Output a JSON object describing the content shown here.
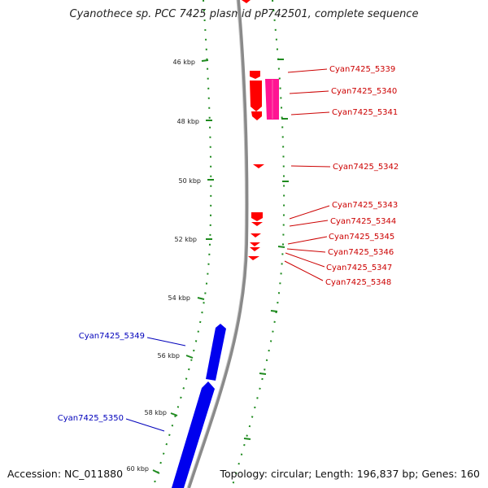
{
  "title": "Cyanothece sp. PCC 7425 plasmid pP742501, complete sequence",
  "footer": {
    "accession": "Accession: NC_011880",
    "stats": "Topology: circular; Length: 196,837 bp; Genes: 160"
  },
  "colors": {
    "background": "#ffffff",
    "backbone": "#8a8a8a",
    "tick_dash": "#1e8a1e",
    "forward_gene": "#0000ee",
    "reverse_gene": "#ff0000",
    "reverse_gene_pink": "#ff1493",
    "label_red": "#cc0000",
    "label_blue": "#0000bb"
  },
  "ticks": [
    "46 kbp",
    "48 kbp",
    "50 kbp",
    "52 kbp",
    "54 kbp",
    "56 kbp",
    "58 kbp",
    "60 kbp"
  ],
  "genes_reverse": [
    "Cyan7425_5339",
    "Cyan7425_5340",
    "Cyan7425_5341",
    "Cyan7425_5342",
    "Cyan7425_5343",
    "Cyan7425_5344",
    "Cyan7425_5345",
    "Cyan7425_5346",
    "Cyan7425_5347",
    "Cyan7425_5348"
  ],
  "genes_forward": [
    "Cyan7425_5349",
    "Cyan7425_5350"
  ]
}
